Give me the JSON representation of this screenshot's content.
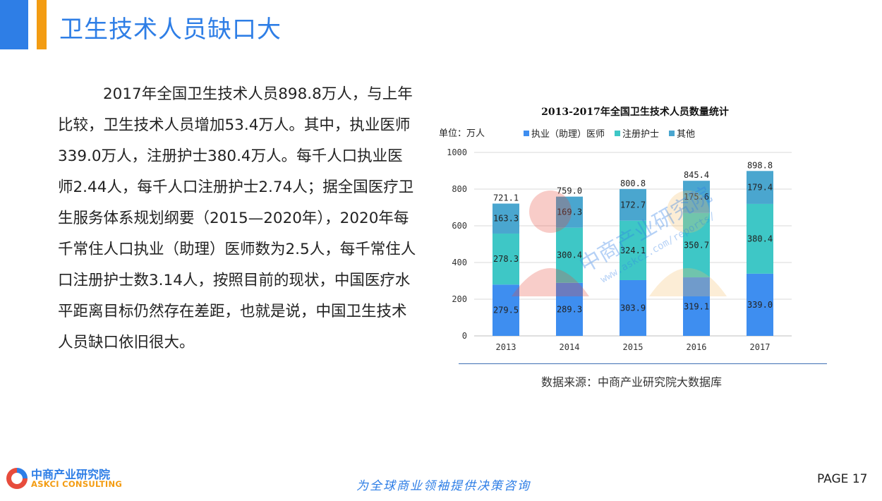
{
  "header": {
    "title": "卫生技术人员缺口大"
  },
  "main": {
    "paragraph": "2017年全国卫生技术人员898.8万人，与上年比较，卫生技术人员增加53.4万人。其中，执业医师339.0万人，注册护士380.4万人。每千人口执业医师2.44人，每千人口注册护士2.74人；据全国医疗卫生服务体系规划纲要（2015—2020年），2020年每千常住人口执业（助理）医师数为2.5人，每千常住人口注册护士数3.14人，按照目前的现状，中国医疗水平距离目标仍然存在差距，也就是说，中国卫生技术人员缺口依旧很大。"
  },
  "chart_data": {
    "type": "bar",
    "stacked": true,
    "title": "2013-2017年全国卫生技术人员数量统计",
    "unit_label": "单位：万人",
    "categories": [
      "2013",
      "2014",
      "2015",
      "2016",
      "2017"
    ],
    "series": [
      {
        "name": "执业（助理）医师",
        "color": "#3e8ef0",
        "values": [
          279.5,
          289.3,
          303.9,
          319.1,
          339.0
        ],
        "labels": [
          "279.5",
          "289.3",
          "303.9",
          "319.1",
          "339.0"
        ]
      },
      {
        "name": "注册护士",
        "color": "#3ec7c6",
        "values": [
          278.3,
          300.4,
          324.1,
          350.7,
          380.4
        ],
        "labels": [
          "278.3",
          "300.4",
          "324.1",
          "350.7",
          "380.4"
        ]
      },
      {
        "name": "其他",
        "color": "#4aa6cf",
        "values": [
          163.3,
          169.3,
          172.7,
          175.6,
          179.4
        ],
        "labels": [
          "163.3",
          "169.3",
          "172.7",
          "175.6",
          "179.4"
        ]
      }
    ],
    "totals": [
      "721.1",
      "759.0",
      "800.8",
      "845.4",
      "898.8"
    ],
    "ylim": [
      0,
      1000
    ],
    "yticks": [
      "0",
      "200",
      "400",
      "600",
      "800",
      "1000"
    ],
    "grid": true,
    "legend_position": "top"
  },
  "source": {
    "text": "数据来源：中商产业研究院大数据库"
  },
  "footer": {
    "logo_cn": "中商产业研究院",
    "logo_en": "ASKCI CONSULTING",
    "slogan": "为全球商业领袖提供决策咨询",
    "page": "PAGE  17"
  },
  "watermark": {
    "text": "中商产业研究院",
    "url": "www.askci.com/reports/"
  }
}
